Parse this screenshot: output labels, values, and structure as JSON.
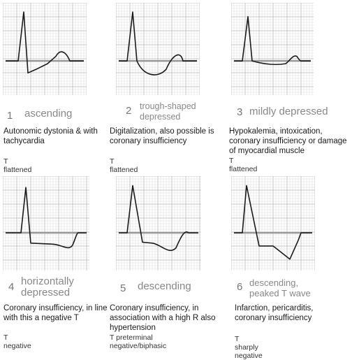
{
  "panels": [
    {
      "number": "1",
      "label": "ascending",
      "description": "Autonomic dystonia & with tachycardia",
      "t_status": "T flattened",
      "st_shape": "ascending"
    },
    {
      "number": "2",
      "label": "trough-shaped depressed",
      "description": "Digitalization, also possible is coronary insufficiency",
      "t_status": "T flattened",
      "st_shape": "trough"
    },
    {
      "number": "3",
      "label": "mildly depressed",
      "description": "Hypokalemia, intoxication, coronary insufficiency or damage of myocardial muscle",
      "t_status": "T flattened",
      "st_shape": "mild"
    },
    {
      "number": "4",
      "label": "horizontally depressed",
      "description": "Coronary insufficiency, in line with this a negative T",
      "t_status": "T negative",
      "st_shape": "horizontal"
    },
    {
      "number": "5",
      "label": "descending",
      "description": "Coronary insufficiency, in association with a high R also hypertension",
      "t_status": "T preterminal negative/biphasic",
      "st_shape": "descending"
    },
    {
      "number": "6",
      "label": "descending, peaked T wave",
      "description": "Infarction, pericarditis, coronary insufficiency",
      "t_status": "T sharply negative",
      "st_shape": "peaked"
    }
  ],
  "colors": {
    "grid_minor": "#dcdcdc",
    "grid_major": "#b8b8b8",
    "baseline": "#999999",
    "trace": "#1a1a1a"
  }
}
